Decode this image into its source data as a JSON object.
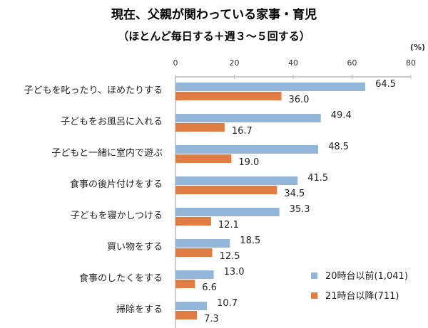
{
  "chart_data": {
    "type": "bar",
    "orientation": "horizontal",
    "title": "現在、父親が関わっている家事・育児",
    "subtitle": "（ほとんど毎日する＋週３～５回する）",
    "unit_label": "(%)",
    "xlim": [
      0,
      80
    ],
    "ticks": [
      "0",
      "20",
      "40",
      "60",
      "80"
    ],
    "categories": [
      "子どもを叱ったり、ほめたりする",
      "子どもをお風呂に入れる",
      "子どもと一緒に室内で遊ぶ",
      "食事の後片付けをする",
      "子どもを寝かしつける",
      "買い物をする",
      "食事のしたくをする",
      "掃除をする"
    ],
    "series": [
      {
        "name": "20時台以前(1,041)",
        "color": "#93B5D8",
        "values": [
          64.5,
          49.4,
          48.5,
          41.5,
          35.3,
          18.5,
          13.0,
          10.7
        ],
        "labels": [
          "64.5",
          "49.4",
          "48.5",
          "41.5",
          "35.3",
          "18.5",
          "13.0",
          "10.7"
        ]
      },
      {
        "name": "21時台以降(711)",
        "color": "#E07D45",
        "values": [
          36.0,
          16.7,
          19.0,
          34.5,
          12.1,
          12.5,
          6.6,
          7.3
        ],
        "labels": [
          "36.0",
          "16.7",
          "19.0",
          "34.5",
          "12.1",
          "12.5",
          "6.6",
          "7.3"
        ]
      }
    ],
    "legend_position": "bottom-right",
    "grid": false
  }
}
